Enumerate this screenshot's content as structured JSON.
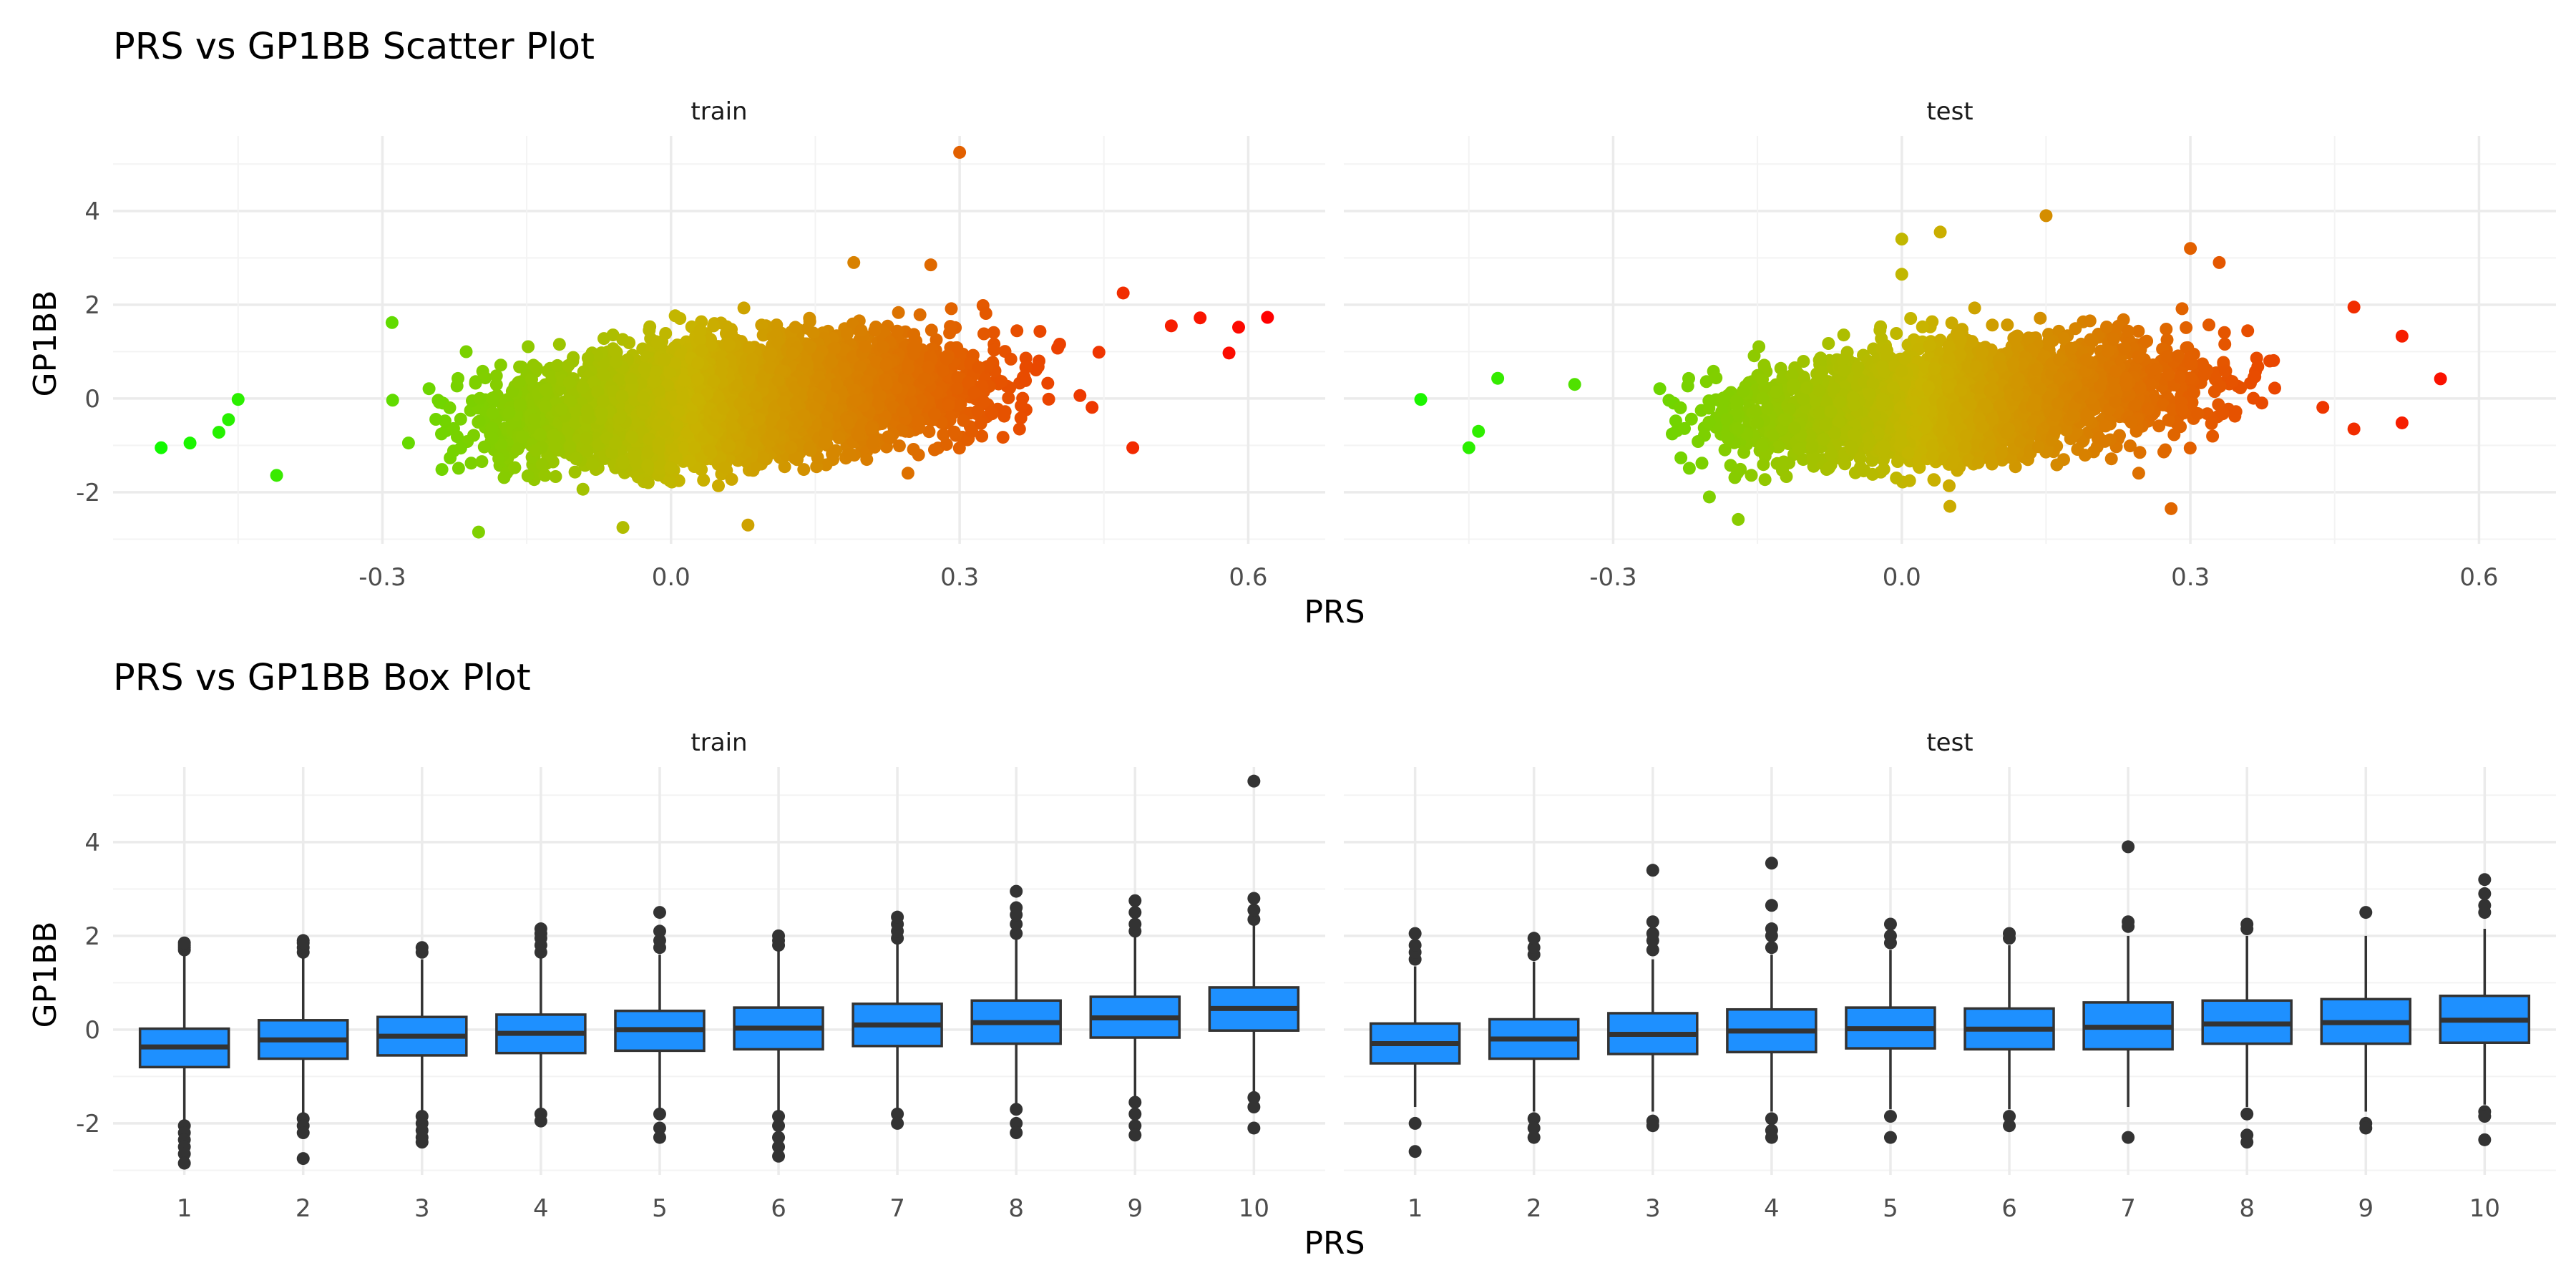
{
  "chart_data": [
    {
      "type": "scatter",
      "title": "PRS vs GP1BB Scatter Plot",
      "xlabel": "PRS",
      "ylabel": "GP1BB",
      "facets": [
        "train",
        "test"
      ],
      "xlim": [
        -0.58,
        0.68
      ],
      "ylim": [
        -3.1,
        5.6
      ],
      "xticks": [
        -0.3,
        0.0,
        0.3,
        0.6
      ],
      "xtick_labels": [
        "-0.3",
        "0.0",
        "0.3",
        "0.6"
      ],
      "yticks": [
        -2,
        0,
        2,
        4
      ],
      "ytick_labels": [
        "-2",
        "0",
        "2",
        "4"
      ],
      "grid": true,
      "color_scale": {
        "low": "#00ff00",
        "mid": "#c8b400",
        "high": "#ff0000"
      },
      "train_outliers": [
        {
          "x": 0.3,
          "y": 5.25
        },
        {
          "x": 0.62,
          "y": 1.73
        },
        {
          "x": 0.59,
          "y": 1.52
        },
        {
          "x": 0.58,
          "y": 0.97
        },
        {
          "x": 0.55,
          "y": 1.72
        },
        {
          "x": -0.53,
          "y": -1.05
        },
        {
          "x": -0.5,
          "y": -0.95
        },
        {
          "x": -0.47,
          "y": -0.72
        },
        {
          "x": -0.46,
          "y": -0.45
        },
        {
          "x": -0.45,
          "y": -0.02
        },
        {
          "x": -0.41,
          "y": -1.64
        },
        {
          "x": -0.2,
          "y": -2.85
        },
        {
          "x": -0.05,
          "y": -2.75
        },
        {
          "x": 0.08,
          "y": -2.7
        },
        {
          "x": 0.19,
          "y": 2.9
        },
        {
          "x": 0.27,
          "y": 2.85
        },
        {
          "x": 0.48,
          "y": -1.05
        },
        {
          "x": 0.47,
          "y": 2.25
        },
        {
          "x": 0.52,
          "y": 1.55
        },
        {
          "x": -0.29,
          "y": 1.62
        }
      ],
      "test_outliers": [
        {
          "x": -0.5,
          "y": -0.02
        },
        {
          "x": -0.45,
          "y": -1.05
        },
        {
          "x": -0.44,
          "y": -0.7
        },
        {
          "x": -0.42,
          "y": 0.43
        },
        {
          "x": -0.34,
          "y": 0.3
        },
        {
          "x": -0.17,
          "y": -2.58
        },
        {
          "x": 0.0,
          "y": 3.4
        },
        {
          "x": 0.04,
          "y": 3.55
        },
        {
          "x": 0.15,
          "y": 3.9
        },
        {
          "x": 0.3,
          "y": 3.2
        },
        {
          "x": 0.33,
          "y": 2.9
        },
        {
          "x": 0.56,
          "y": 0.42
        },
        {
          "x": 0.52,
          "y": 1.33
        },
        {
          "x": 0.52,
          "y": -0.52
        },
        {
          "x": 0.47,
          "y": 1.95
        },
        {
          "x": 0.47,
          "y": -0.65
        },
        {
          "x": 0.28,
          "y": -2.35
        },
        {
          "x": 0.05,
          "y": -2.3
        },
        {
          "x": 0.0,
          "y": 2.65
        },
        {
          "x": -0.2,
          "y": -2.1
        }
      ]
    },
    {
      "type": "box",
      "title": "PRS vs GP1BB Box Plot",
      "xlabel": "PRS",
      "ylabel": "GP1BB",
      "facets": [
        "train",
        "test"
      ],
      "categories": [
        "1",
        "2",
        "3",
        "4",
        "5",
        "6",
        "7",
        "8",
        "9",
        "10"
      ],
      "ylim": [
        -3.1,
        5.6
      ],
      "yticks": [
        -2,
        0,
        2,
        4
      ],
      "ytick_labels": [
        "-2",
        "0",
        "2",
        "4"
      ],
      "box_color": "#1e90ff",
      "grid": true,
      "train": [
        {
          "q1": -0.8,
          "median": -0.37,
          "q3": 0.02,
          "lo": -1.95,
          "hi": 1.6,
          "out_hi": [
            1.7,
            1.75,
            1.8,
            1.85
          ],
          "out_lo": [
            -2.05,
            -2.2,
            -2.35,
            -2.5,
            -2.65,
            -2.85
          ]
        },
        {
          "q1": -0.62,
          "median": -0.22,
          "q3": 0.2,
          "lo": -1.8,
          "hi": 1.6,
          "out_hi": [
            1.65,
            1.75,
            1.85,
            1.9
          ],
          "out_lo": [
            -1.9,
            -2.05,
            -2.2,
            -2.75
          ]
        },
        {
          "q1": -0.55,
          "median": -0.14,
          "q3": 0.27,
          "lo": -1.75,
          "hi": 1.5,
          "out_hi": [
            1.65,
            1.75
          ],
          "out_lo": [
            -1.85,
            -2.0,
            -2.15,
            -2.3,
            -2.4
          ]
        },
        {
          "q1": -0.5,
          "median": -0.08,
          "q3": 0.32,
          "lo": -1.75,
          "hi": 1.55,
          "out_hi": [
            1.65,
            1.8,
            1.95,
            2.05,
            2.15
          ],
          "out_lo": [
            -1.8,
            -1.95
          ]
        },
        {
          "q1": -0.45,
          "median": 0.0,
          "q3": 0.4,
          "lo": -1.7,
          "hi": 1.6,
          "out_hi": [
            1.75,
            1.9,
            2.1,
            2.5
          ],
          "out_lo": [
            -1.8,
            -2.1,
            -2.3
          ]
        },
        {
          "q1": -0.42,
          "median": 0.03,
          "q3": 0.47,
          "lo": -1.75,
          "hi": 1.7,
          "out_hi": [
            1.8,
            1.9,
            2.0
          ],
          "out_lo": [
            -1.85,
            -2.05,
            -2.3,
            -2.5,
            -2.7
          ]
        },
        {
          "q1": -0.35,
          "median": 0.1,
          "q3": 0.55,
          "lo": -1.7,
          "hi": 1.85,
          "out_hi": [
            1.95,
            2.1,
            2.25,
            2.4
          ],
          "out_lo": [
            -1.8,
            -2.0
          ]
        },
        {
          "q1": -0.3,
          "median": 0.15,
          "q3": 0.62,
          "lo": -1.6,
          "hi": 1.95,
          "out_hi": [
            2.05,
            2.25,
            2.45,
            2.6,
            2.95
          ],
          "out_lo": [
            -1.7,
            -2.0,
            -2.2
          ]
        },
        {
          "q1": -0.17,
          "median": 0.25,
          "q3": 0.7,
          "lo": -1.45,
          "hi": 2.0,
          "out_hi": [
            2.1,
            2.25,
            2.5,
            2.75
          ],
          "out_lo": [
            -1.55,
            -1.8,
            -2.05,
            -2.25
          ]
        },
        {
          "q1": -0.02,
          "median": 0.45,
          "q3": 0.9,
          "lo": -1.35,
          "hi": 2.25,
          "out_hi": [
            2.35,
            2.55,
            2.8,
            5.3
          ],
          "out_lo": [
            -1.45,
            -1.65,
            -2.1
          ]
        }
      ],
      "test": [
        {
          "q1": -0.72,
          "median": -0.3,
          "q3": 0.13,
          "lo": -1.65,
          "hi": 1.35,
          "out_hi": [
            1.5,
            1.65,
            1.8,
            2.05
          ],
          "out_lo": [
            -2.0,
            -2.6
          ]
        },
        {
          "q1": -0.62,
          "median": -0.2,
          "q3": 0.22,
          "lo": -1.75,
          "hi": 1.45,
          "out_hi": [
            1.6,
            1.75,
            1.95
          ],
          "out_lo": [
            -1.9,
            -2.1,
            -2.3
          ]
        },
        {
          "q1": -0.52,
          "median": -0.1,
          "q3": 0.35,
          "lo": -1.75,
          "hi": 1.5,
          "out_hi": [
            1.7,
            1.9,
            2.05,
            2.3,
            3.4
          ],
          "out_lo": [
            -1.95,
            -2.05
          ]
        },
        {
          "q1": -0.48,
          "median": -0.03,
          "q3": 0.43,
          "lo": -1.75,
          "hi": 1.6,
          "out_hi": [
            1.75,
            2.0,
            2.15,
            2.65,
            3.55
          ],
          "out_lo": [
            -1.9,
            -2.15,
            -2.3
          ]
        },
        {
          "q1": -0.4,
          "median": 0.02,
          "q3": 0.47,
          "lo": -1.7,
          "hi": 1.7,
          "out_hi": [
            1.85,
            2.0,
            2.25
          ],
          "out_lo": [
            -1.85,
            -2.3
          ]
        },
        {
          "q1": -0.42,
          "median": 0.01,
          "q3": 0.45,
          "lo": -1.7,
          "hi": 1.8,
          "out_hi": [
            1.95,
            2.05
          ],
          "out_lo": [
            -1.85,
            -2.05
          ]
        },
        {
          "q1": -0.42,
          "median": 0.05,
          "q3": 0.58,
          "lo": -1.65,
          "hi": 2.0,
          "out_hi": [
            2.2,
            2.3,
            3.9
          ],
          "out_lo": [
            -2.3
          ]
        },
        {
          "q1": -0.3,
          "median": 0.12,
          "q3": 0.62,
          "lo": -1.65,
          "hi": 2.0,
          "out_hi": [
            2.15,
            2.25
          ],
          "out_lo": [
            -1.8,
            -2.25,
            -2.4
          ]
        },
        {
          "q1": -0.3,
          "median": 0.15,
          "q3": 0.65,
          "lo": -1.75,
          "hi": 2.0,
          "out_hi": [
            2.5
          ],
          "out_lo": [
            -2.0,
            -2.1
          ]
        },
        {
          "q1": -0.28,
          "median": 0.2,
          "q3": 0.72,
          "lo": -1.6,
          "hi": 2.15,
          "out_hi": [
            2.5,
            2.65,
            2.9,
            3.2
          ],
          "out_lo": [
            -1.75,
            -1.85,
            -2.35
          ]
        }
      ]
    }
  ]
}
